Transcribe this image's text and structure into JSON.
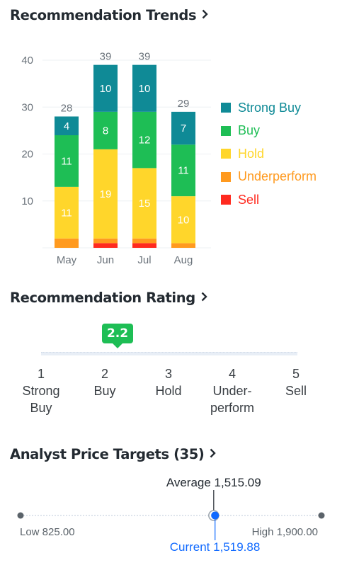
{
  "trends": {
    "title": "Recommendation Trends",
    "legend": [
      {
        "label": "Strong Buy",
        "color": "#0f8a96"
      },
      {
        "label": "Buy",
        "color": "#1ebe55"
      },
      {
        "label": "Hold",
        "color": "#ffd62b"
      },
      {
        "label": "Underperform",
        "color": "#ff9a1f"
      },
      {
        "label": "Sell",
        "color": "#ff2a1f"
      }
    ]
  },
  "chart_data": {
    "type": "bar",
    "stacked": true,
    "categories": [
      "May",
      "Jun",
      "Jul",
      "Aug"
    ],
    "series": [
      {
        "name": "Sell",
        "color": "#ff2a1f",
        "values": [
          0,
          1,
          1,
          0
        ]
      },
      {
        "name": "Underperform",
        "color": "#ff9a1f",
        "values": [
          2,
          1,
          1,
          1
        ]
      },
      {
        "name": "Hold",
        "color": "#ffd62b",
        "values": [
          11,
          19,
          15,
          10
        ]
      },
      {
        "name": "Buy",
        "color": "#1ebe55",
        "values": [
          11,
          8,
          12,
          11
        ]
      },
      {
        "name": "Strong Buy",
        "color": "#0f8a96",
        "values": [
          4,
          10,
          10,
          7
        ]
      }
    ],
    "totals": [
      28,
      39,
      39,
      29
    ],
    "segment_labels": {
      "Hold": true,
      "Buy": true,
      "Strong Buy": true
    },
    "yticks": [
      10,
      20,
      30,
      40
    ],
    "ylim": [
      0,
      40
    ],
    "grid": true,
    "legend_position": "right"
  },
  "rating": {
    "title": "Recommendation Rating",
    "value": "2.2",
    "value_num": 2.2,
    "scale_min": 1,
    "scale_max": 5,
    "ticks": [
      {
        "num": "1",
        "l1": "Strong",
        "l2": "Buy"
      },
      {
        "num": "2",
        "l1": "Buy",
        "l2": ""
      },
      {
        "num": "3",
        "l1": "Hold",
        "l2": ""
      },
      {
        "num": "4",
        "l1": "Under-",
        "l2": "perform"
      },
      {
        "num": "5",
        "l1": "Sell",
        "l2": ""
      }
    ]
  },
  "price_targets": {
    "title": "Analyst Price Targets (35)",
    "low_label": "Low 825.00",
    "high_label": "High 1,900.00",
    "average_label": "Average 1,515.09",
    "current_label": "Current 1,519.88",
    "low": 825.0,
    "high": 1900.0,
    "average": 1515.09,
    "current": 1519.88,
    "current_color": "#0f69ff"
  }
}
